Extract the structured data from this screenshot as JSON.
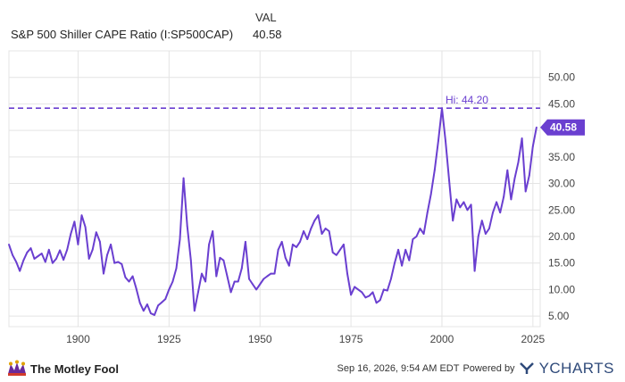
{
  "header": {
    "column_label": "VAL",
    "series_name": "S&P 500 Shiller CAPE Ratio (I:SP500CAP)",
    "series_value": "40.58"
  },
  "footer": {
    "brand_left": "The Motley Fool",
    "timestamp": "Sep 16, 2026, 9:54 AM EDT",
    "powered_by": "Powered by",
    "brand_right": "YCHARTS"
  },
  "colors": {
    "line": "#6a3fd0",
    "grid": "#e4e4e4",
    "accent_badge": "#6a3fd0"
  },
  "chart_data": {
    "type": "line",
    "title": "",
    "xlabel": "",
    "ylabel": "",
    "xlim": [
      1881,
      2027
    ],
    "ylim": [
      3,
      55
    ],
    "x_ticks": [
      "1900",
      "1925",
      "1950",
      "1975",
      "2000",
      "2025"
    ],
    "y_ticks": [
      "5.00",
      "10.00",
      "15.00",
      "20.00",
      "25.00",
      "30.00",
      "35.00",
      "40.00",
      "45.00",
      "50.00"
    ],
    "grid": true,
    "reference_line": {
      "label": "Hi: 44.20",
      "value": 44.2
    },
    "last_value_label": "40.58",
    "series": [
      {
        "values": [
          [
            1881,
            18.5
          ],
          [
            1882,
            16.5
          ],
          [
            1883,
            15.2
          ],
          [
            1884,
            13.5
          ],
          [
            1885,
            15.5
          ],
          [
            1886,
            17.0
          ],
          [
            1887,
            17.8
          ],
          [
            1888,
            15.8
          ],
          [
            1889,
            16.3
          ],
          [
            1890,
            16.8
          ],
          [
            1891,
            15.2
          ],
          [
            1892,
            17.5
          ],
          [
            1893,
            15.0
          ],
          [
            1894,
            15.8
          ],
          [
            1895,
            17.4
          ],
          [
            1896,
            15.6
          ],
          [
            1897,
            17.5
          ],
          [
            1898,
            20.5
          ],
          [
            1899,
            22.8
          ],
          [
            1900,
            18.5
          ],
          [
            1901,
            24.0
          ],
          [
            1902,
            21.8
          ],
          [
            1903,
            15.8
          ],
          [
            1904,
            17.5
          ],
          [
            1905,
            20.8
          ],
          [
            1906,
            19.0
          ],
          [
            1907,
            13.0
          ],
          [
            1908,
            16.5
          ],
          [
            1909,
            18.5
          ],
          [
            1910,
            15.0
          ],
          [
            1911,
            15.2
          ],
          [
            1912,
            14.8
          ],
          [
            1913,
            12.3
          ],
          [
            1914,
            11.5
          ],
          [
            1915,
            12.5
          ],
          [
            1916,
            10.2
          ],
          [
            1917,
            7.5
          ],
          [
            1918,
            6.0
          ],
          [
            1919,
            7.2
          ],
          [
            1920,
            5.5
          ],
          [
            1921,
            5.2
          ],
          [
            1922,
            7.0
          ],
          [
            1923,
            7.6
          ],
          [
            1924,
            8.2
          ],
          [
            1925,
            10.0
          ],
          [
            1926,
            11.5
          ],
          [
            1927,
            14.0
          ],
          [
            1928,
            19.5
          ],
          [
            1929,
            31.0
          ],
          [
            1930,
            22.0
          ],
          [
            1931,
            15.5
          ],
          [
            1932,
            6.0
          ],
          [
            1933,
            9.5
          ],
          [
            1934,
            13.0
          ],
          [
            1935,
            11.5
          ],
          [
            1936,
            18.5
          ],
          [
            1937,
            21.0
          ],
          [
            1938,
            12.5
          ],
          [
            1939,
            16.0
          ],
          [
            1940,
            15.5
          ],
          [
            1941,
            12.5
          ],
          [
            1942,
            9.5
          ],
          [
            1943,
            11.5
          ],
          [
            1944,
            11.5
          ],
          [
            1945,
            14.0
          ],
          [
            1946,
            19.0
          ],
          [
            1947,
            12.0
          ],
          [
            1948,
            11.0
          ],
          [
            1949,
            10.0
          ],
          [
            1950,
            11.0
          ],
          [
            1951,
            12.0
          ],
          [
            1952,
            12.5
          ],
          [
            1953,
            13.0
          ],
          [
            1954,
            13.0
          ],
          [
            1955,
            17.5
          ],
          [
            1956,
            19.0
          ],
          [
            1957,
            16.0
          ],
          [
            1958,
            14.5
          ],
          [
            1959,
            18.5
          ],
          [
            1960,
            18.0
          ],
          [
            1961,
            19.0
          ],
          [
            1962,
            21.0
          ],
          [
            1963,
            19.5
          ],
          [
            1964,
            21.5
          ],
          [
            1965,
            23.0
          ],
          [
            1966,
            24.0
          ],
          [
            1967,
            20.5
          ],
          [
            1968,
            21.5
          ],
          [
            1969,
            21.0
          ],
          [
            1970,
            17.0
          ],
          [
            1971,
            16.5
          ],
          [
            1972,
            17.5
          ],
          [
            1973,
            18.5
          ],
          [
            1974,
            13.0
          ],
          [
            1975,
            9.0
          ],
          [
            1976,
            10.5
          ],
          [
            1977,
            10.0
          ],
          [
            1978,
            9.5
          ],
          [
            1979,
            8.5
          ],
          [
            1980,
            8.8
          ],
          [
            1981,
            9.5
          ],
          [
            1982,
            7.5
          ],
          [
            1983,
            8.0
          ],
          [
            1984,
            10.0
          ],
          [
            1985,
            9.8
          ],
          [
            1986,
            12.0
          ],
          [
            1987,
            15.0
          ],
          [
            1988,
            17.5
          ],
          [
            1989,
            14.5
          ],
          [
            1990,
            17.5
          ],
          [
            1991,
            15.5
          ],
          [
            1992,
            19.5
          ],
          [
            1993,
            20.0
          ],
          [
            1994,
            21.5
          ],
          [
            1995,
            20.5
          ],
          [
            1996,
            24.5
          ],
          [
            1997,
            28.0
          ],
          [
            1998,
            32.5
          ],
          [
            1999,
            38.0
          ],
          [
            2000,
            44.2
          ],
          [
            2001,
            38.0
          ],
          [
            2002,
            30.5
          ],
          [
            2003,
            23.0
          ],
          [
            2004,
            27.0
          ],
          [
            2005,
            25.5
          ],
          [
            2006,
            26.5
          ],
          [
            2007,
            25.0
          ],
          [
            2008,
            26.0
          ],
          [
            2009,
            13.5
          ],
          [
            2010,
            20.0
          ],
          [
            2011,
            23.0
          ],
          [
            2012,
            20.5
          ],
          [
            2013,
            21.5
          ],
          [
            2014,
            24.5
          ],
          [
            2015,
            26.5
          ],
          [
            2016,
            24.5
          ],
          [
            2017,
            27.5
          ],
          [
            2018,
            32.5
          ],
          [
            2019,
            27.0
          ],
          [
            2020,
            31.0
          ],
          [
            2021,
            34.0
          ],
          [
            2022,
            38.5
          ],
          [
            2023,
            28.5
          ],
          [
            2024,
            31.5
          ],
          [
            2025,
            37.0
          ],
          [
            2026,
            40.58
          ]
        ]
      }
    ]
  }
}
